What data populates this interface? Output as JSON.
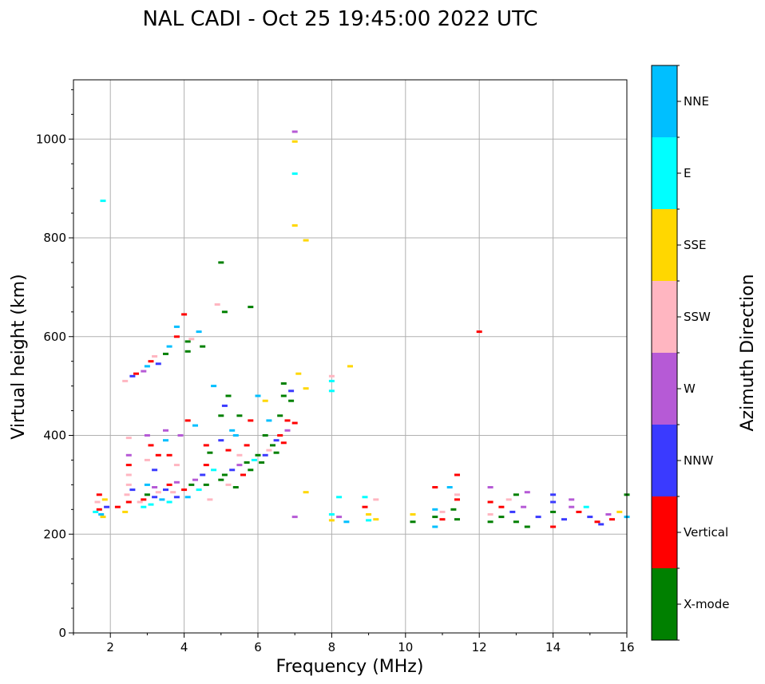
{
  "chart_data": {
    "type": "scatter",
    "title": "NAL CADI - Oct 25 19:45:00 2022 UTC",
    "xlabel": "Frequency (MHz)",
    "ylabel": "Virtual height (km)",
    "xlim": [
      1,
      16
    ],
    "ylim": [
      0,
      1120
    ],
    "x_ticks": [
      2,
      4,
      6,
      8,
      10,
      12,
      14,
      16
    ],
    "y_ticks": [
      0,
      200,
      400,
      600,
      800,
      1000
    ],
    "grid": true,
    "colorbar": {
      "label": "Azimuth Direction",
      "categories": [
        {
          "name": "X-mode",
          "color": "#008000"
        },
        {
          "name": "Vertical",
          "color": "#ff0000"
        },
        {
          "name": "NNW",
          "color": "#3a3aff"
        },
        {
          "name": "W",
          "color": "#b65ad6"
        },
        {
          "name": "SSW",
          "color": "#ffb6c1"
        },
        {
          "name": "SSE",
          "color": "#ffd700"
        },
        {
          "name": "E",
          "color": "#00ffff"
        },
        {
          "name": "NNE",
          "color": "#00bfff"
        }
      ]
    },
    "points": [
      [
        1.6,
        245,
        "E"
      ],
      [
        1.7,
        250,
        "Vertical"
      ],
      [
        1.8,
        235,
        "SSE"
      ],
      [
        1.9,
        255,
        "NNW"
      ],
      [
        1.65,
        265,
        "SSW"
      ],
      [
        1.75,
        240,
        "NNE"
      ],
      [
        1.85,
        270,
        "SSE"
      ],
      [
        1.7,
        280,
        "Vertical"
      ],
      [
        1.8,
        875,
        "E"
      ],
      [
        2.2,
        255,
        "Vertical"
      ],
      [
        2.4,
        245,
        "SSE"
      ],
      [
        2.5,
        265,
        "Vertical"
      ],
      [
        2.45,
        280,
        "SSW"
      ],
      [
        2.5,
        300,
        "SSW"
      ],
      [
        2.6,
        290,
        "NNW"
      ],
      [
        2.5,
        320,
        "SSW"
      ],
      [
        2.5,
        340,
        "Vertical"
      ],
      [
        2.5,
        360,
        "W"
      ],
      [
        2.5,
        395,
        "SSW"
      ],
      [
        2.4,
        510,
        "SSW"
      ],
      [
        2.6,
        520,
        "NNW"
      ],
      [
        2.7,
        525,
        "Vertical"
      ],
      [
        2.8,
        265,
        "SSW"
      ],
      [
        2.9,
        270,
        "Vertical"
      ],
      [
        2.9,
        255,
        "E"
      ],
      [
        3.0,
        280,
        "X-mode"
      ],
      [
        3.0,
        300,
        "NNE"
      ],
      [
        3.1,
        260,
        "E"
      ],
      [
        3.2,
        275,
        "NNW"
      ],
      [
        3.2,
        295,
        "W"
      ],
      [
        3.3,
        285,
        "SSW"
      ],
      [
        3.4,
        270,
        "NNE"
      ],
      [
        3.5,
        290,
        "NNW"
      ],
      [
        3.6,
        265,
        "E"
      ],
      [
        3.6,
        300,
        "Vertical"
      ],
      [
        3.7,
        285,
        "SSW"
      ],
      [
        3.8,
        275,
        "NNW"
      ],
      [
        3.8,
        305,
        "W"
      ],
      [
        3.0,
        350,
        "SSW"
      ],
      [
        3.1,
        380,
        "Vertical"
      ],
      [
        3.2,
        330,
        "NNW"
      ],
      [
        3.0,
        400,
        "W"
      ],
      [
        3.3,
        360,
        "Vertical"
      ],
      [
        3.5,
        390,
        "NNE"
      ],
      [
        3.5,
        410,
        "W"
      ],
      [
        3.6,
        360,
        "Vertical"
      ],
      [
        3.8,
        340,
        "SSW"
      ],
      [
        3.9,
        400,
        "W"
      ],
      [
        2.9,
        530,
        "W"
      ],
      [
        3.0,
        540,
        "NNE"
      ],
      [
        3.1,
        550,
        "Vertical"
      ],
      [
        3.2,
        560,
        "SSW"
      ],
      [
        3.3,
        545,
        "NNW"
      ],
      [
        3.5,
        565,
        "X-mode"
      ],
      [
        3.6,
        580,
        "NNE"
      ],
      [
        3.8,
        600,
        "Vertical"
      ],
      [
        3.8,
        620,
        "NNE"
      ],
      [
        4.0,
        645,
        "Vertical"
      ],
      [
        4.1,
        570,
        "X-mode"
      ],
      [
        4.1,
        590,
        "X-mode"
      ],
      [
        4.2,
        595,
        "SSW"
      ],
      [
        4.4,
        610,
        "NNE"
      ],
      [
        4.5,
        580,
        "X-mode"
      ],
      [
        4.0,
        290,
        "Vertical"
      ],
      [
        4.1,
        275,
        "NNE"
      ],
      [
        4.2,
        300,
        "X-mode"
      ],
      [
        4.3,
        310,
        "W"
      ],
      [
        4.4,
        290,
        "E"
      ],
      [
        4.5,
        320,
        "NNW"
      ],
      [
        4.6,
        300,
        "X-mode"
      ],
      [
        4.6,
        340,
        "Vertical"
      ],
      [
        4.7,
        270,
        "SSW"
      ],
      [
        4.7,
        365,
        "X-mode"
      ],
      [
        4.8,
        330,
        "E"
      ],
      [
        4.1,
        430,
        "Vertical"
      ],
      [
        4.3,
        420,
        "NNE"
      ],
      [
        4.6,
        380,
        "Vertical"
      ],
      [
        4.8,
        500,
        "NNE"
      ],
      [
        5.0,
        440,
        "X-mode"
      ],
      [
        5.0,
        750,
        "X-mode"
      ],
      [
        4.9,
        665,
        "SSW"
      ],
      [
        5.1,
        650,
        "X-mode"
      ],
      [
        5.2,
        480,
        "X-mode"
      ],
      [
        5.1,
        460,
        "NNW"
      ],
      [
        5.3,
        410,
        "NNE"
      ],
      [
        5.0,
        310,
        "X-mode"
      ],
      [
        5.1,
        320,
        "X-mode"
      ],
      [
        5.2,
        300,
        "SSW"
      ],
      [
        5.3,
        330,
        "NNW"
      ],
      [
        5.4,
        295,
        "X-mode"
      ],
      [
        5.5,
        340,
        "W"
      ],
      [
        5.5,
        360,
        "SSW"
      ],
      [
        5.6,
        320,
        "Vertical"
      ],
      [
        5.7,
        345,
        "X-mode"
      ],
      [
        5.8,
        330,
        "X-mode"
      ],
      [
        5.9,
        350,
        "E"
      ],
      [
        5.0,
        390,
        "NNW"
      ],
      [
        5.2,
        370,
        "Vertical"
      ],
      [
        5.4,
        400,
        "NNE"
      ],
      [
        5.5,
        440,
        "X-mode"
      ],
      [
        5.7,
        380,
        "Vertical"
      ],
      [
        5.8,
        430,
        "Vertical"
      ],
      [
        5.8,
        660,
        "X-mode"
      ],
      [
        6.0,
        480,
        "NNE"
      ],
      [
        6.0,
        360,
        "X-mode"
      ],
      [
        6.2,
        400,
        "X-mode"
      ],
      [
        6.2,
        470,
        "SSE"
      ],
      [
        6.3,
        430,
        "NNE"
      ],
      [
        6.1,
        345,
        "X-mode"
      ],
      [
        6.2,
        360,
        "NNW"
      ],
      [
        6.3,
        370,
        "SSW"
      ],
      [
        6.4,
        380,
        "X-mode"
      ],
      [
        6.5,
        390,
        "NNW"
      ],
      [
        6.5,
        365,
        "X-mode"
      ],
      [
        6.6,
        400,
        "Vertical"
      ],
      [
        6.6,
        440,
        "X-mode"
      ],
      [
        6.7,
        385,
        "Vertical"
      ],
      [
        6.7,
        480,
        "X-mode"
      ],
      [
        6.7,
        505,
        "X-mode"
      ],
      [
        6.8,
        430,
        "Vertical"
      ],
      [
        6.8,
        410,
        "W"
      ],
      [
        6.9,
        470,
        "X-mode"
      ],
      [
        6.9,
        490,
        "NNW"
      ],
      [
        7.0,
        425,
        "Vertical"
      ],
      [
        7.0,
        1015,
        "W"
      ],
      [
        7.0,
        995,
        "SSE"
      ],
      [
        7.0,
        930,
        "E"
      ],
      [
        7.0,
        825,
        "SSE"
      ],
      [
        7.3,
        795,
        "SSE"
      ],
      [
        7.1,
        525,
        "SSE"
      ],
      [
        7.3,
        495,
        "SSE"
      ],
      [
        7.0,
        235,
        "W"
      ],
      [
        7.3,
        285,
        "SSE"
      ],
      [
        8.0,
        520,
        "SSW"
      ],
      [
        8.0,
        510,
        "E"
      ],
      [
        8.0,
        490,
        "E"
      ],
      [
        8.5,
        540,
        "SSE"
      ],
      [
        8.2,
        275,
        "E"
      ],
      [
        8.0,
        240,
        "E"
      ],
      [
        8.0,
        228,
        "SSE"
      ],
      [
        8.2,
        235,
        "W"
      ],
      [
        8.4,
        225,
        "NNE"
      ],
      [
        8.9,
        275,
        "E"
      ],
      [
        8.9,
        255,
        "Vertical"
      ],
      [
        9.0,
        240,
        "SSE"
      ],
      [
        9.0,
        228,
        "E"
      ],
      [
        9.2,
        230,
        "SSE"
      ],
      [
        9.2,
        270,
        "SSW"
      ],
      [
        10.2,
        240,
        "SSE"
      ],
      [
        10.2,
        225,
        "X-mode"
      ],
      [
        10.8,
        295,
        "Vertical"
      ],
      [
        10.8,
        250,
        "NNE"
      ],
      [
        10.8,
        235,
        "X-mode"
      ],
      [
        10.8,
        215,
        "NNE"
      ],
      [
        11.0,
        245,
        "SSW"
      ],
      [
        11.0,
        230,
        "Vertical"
      ],
      [
        11.2,
        295,
        "NNE"
      ],
      [
        11.3,
        250,
        "X-mode"
      ],
      [
        11.4,
        230,
        "X-mode"
      ],
      [
        11.4,
        270,
        "Vertical"
      ],
      [
        11.4,
        280,
        "SSW"
      ],
      [
        11.4,
        320,
        "Vertical"
      ],
      [
        12.0,
        610,
        "Vertical"
      ],
      [
        12.3,
        295,
        "W"
      ],
      [
        12.3,
        265,
        "Vertical"
      ],
      [
        12.3,
        240,
        "SSW"
      ],
      [
        12.3,
        225,
        "X-mode"
      ],
      [
        12.6,
        255,
        "Vertical"
      ],
      [
        12.6,
        235,
        "X-mode"
      ],
      [
        12.8,
        270,
        "SSW"
      ],
      [
        12.9,
        245,
        "NNW"
      ],
      [
        13.0,
        280,
        "X-mode"
      ],
      [
        13.0,
        225,
        "X-mode"
      ],
      [
        13.2,
        255,
        "W"
      ],
      [
        13.3,
        285,
        "W"
      ],
      [
        13.3,
        215,
        "X-mode"
      ],
      [
        13.6,
        235,
        "NNW"
      ],
      [
        14.0,
        280,
        "NNW"
      ],
      [
        14.0,
        265,
        "NNW"
      ],
      [
        14.0,
        245,
        "X-mode"
      ],
      [
        14.0,
        215,
        "Vertical"
      ],
      [
        14.3,
        230,
        "NNW"
      ],
      [
        14.5,
        255,
        "W"
      ],
      [
        14.5,
        270,
        "W"
      ],
      [
        14.7,
        245,
        "Vertical"
      ],
      [
        14.9,
        255,
        "E"
      ],
      [
        15.0,
        235,
        "NNW"
      ],
      [
        15.2,
        225,
        "Vertical"
      ],
      [
        15.3,
        220,
        "NNW"
      ],
      [
        15.5,
        240,
        "W"
      ],
      [
        15.6,
        230,
        "Vertical"
      ],
      [
        15.8,
        245,
        "SSE"
      ],
      [
        16.0,
        280,
        "X-mode"
      ],
      [
        16.0,
        235,
        "NNE"
      ]
    ]
  }
}
